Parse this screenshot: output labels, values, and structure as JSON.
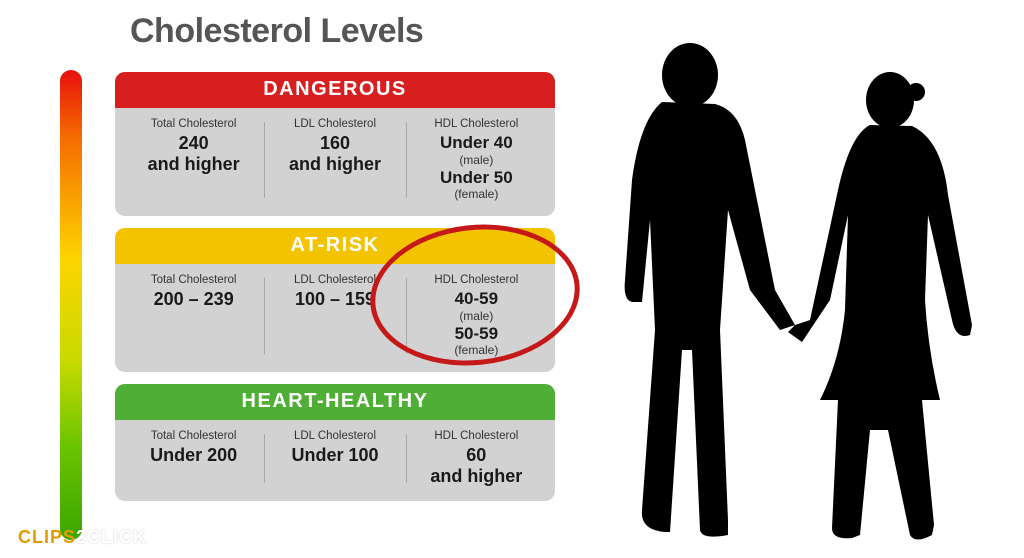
{
  "title": "Cholesterol Levels",
  "thermometer": {
    "gradient_stops": [
      "#e80e0e",
      "#f56a00",
      "#fdd400",
      "#c8da00",
      "#6bc400",
      "#3aa500"
    ]
  },
  "categories": [
    {
      "name": "DANGEROUS",
      "header_bg": "#d81f1f",
      "total": {
        "label": "Total Cholesterol",
        "value": "240\nand higher"
      },
      "ldl": {
        "label": "LDL Cholesterol",
        "value": "160\nand higher"
      },
      "hdl": {
        "label": "HDL Cholesterol",
        "male_value": "Under 40",
        "male_note": "(male)",
        "female_value": "Under 50",
        "female_note": "(female)"
      }
    },
    {
      "name": "AT-RISK",
      "header_bg": "#f4c300",
      "total": {
        "label": "Total Cholesterol",
        "value": "200 – 239"
      },
      "ldl": {
        "label": "LDL Cholesterol",
        "value": "100 – 159"
      },
      "hdl": {
        "label": "HDL Cholesterol",
        "male_value": "40-59",
        "male_note": "(male)",
        "female_value": "50-59",
        "female_note": "(female)"
      },
      "highlighted": true
    },
    {
      "name": "HEART-HEALTHY",
      "header_bg": "#4fae36",
      "total": {
        "label": "Total Cholesterol",
        "value": "Under 200"
      },
      "ldl": {
        "label": "LDL Cholesterol",
        "value": "Under 100"
      },
      "hdl": {
        "label": "HDL Cholesterol",
        "value": "60\nand higher"
      }
    }
  ],
  "highlight_circle_color": "#c51818",
  "watermark": {
    "text_a": "CLIPS",
    "text_b": "2CLICK",
    "color_a": "#e59b00",
    "color_b": "#ffffff"
  },
  "silhouette_color": "#000000"
}
